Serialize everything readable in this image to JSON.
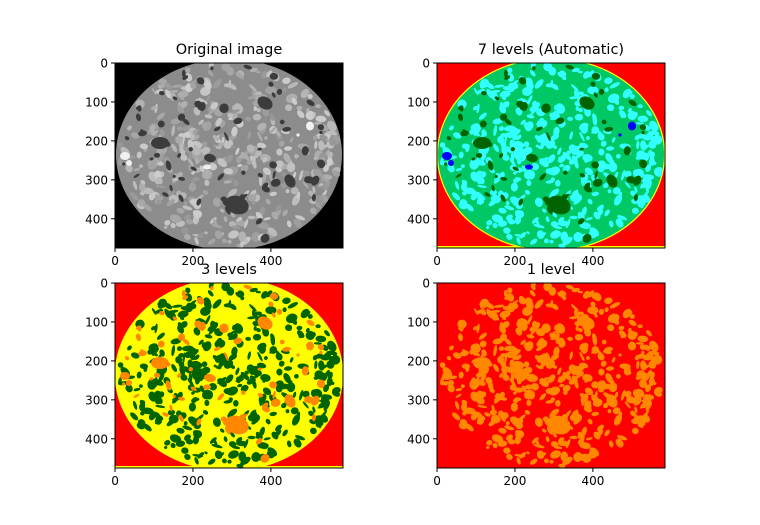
{
  "chart_data": [
    {
      "type": "image",
      "title": "Original image",
      "colors": {
        "background": "#000000",
        "matrix": "#8c8c8c",
        "aggregate": "#b4b4b4",
        "void": "#3c3c3c",
        "bright": "#f0f0f0"
      },
      "x_ticks": [
        0,
        200,
        400
      ],
      "y_ticks": [
        0,
        100,
        200,
        300,
        400
      ],
      "xlim": [
        0,
        585
      ],
      "ylim": [
        0,
        475
      ],
      "y_inverted": true
    },
    {
      "type": "image",
      "title": "7 levels (Automatic)",
      "colors": {
        "background": "#ff0000",
        "matrix": "#00c864",
        "aggregate": "#33ffff",
        "void": "#006400",
        "bright": "#0000ff",
        "edge": "#ffff00"
      },
      "x_ticks": [
        0,
        200,
        400
      ],
      "y_ticks": [
        0,
        100,
        200,
        300,
        400
      ],
      "xlim": [
        0,
        585
      ],
      "ylim": [
        0,
        475
      ],
      "y_inverted": true
    },
    {
      "type": "image",
      "title": "3 levels",
      "colors": {
        "background": "#ff0000",
        "matrix": "#ffff00",
        "aggregate": "#006400",
        "void": "#ff8800",
        "bright": "#ff8800",
        "edge": "#ffff00"
      },
      "x_ticks": [
        0,
        200,
        400
      ],
      "y_ticks": [
        0,
        100,
        200,
        300,
        400
      ],
      "xlim": [
        0,
        585
      ],
      "ylim": [
        0,
        475
      ],
      "y_inverted": true
    },
    {
      "type": "image",
      "title": "1 level",
      "colors": {
        "background": "#ff0000",
        "matrix": "#ff0000",
        "aggregate": "#ff8800",
        "void": "#ff8800",
        "bright": "#ff8800",
        "edge": "#ff0000"
      },
      "x_ticks": [
        0,
        200,
        400
      ],
      "y_ticks": [
        0,
        100,
        200,
        300,
        400
      ],
      "xlim": [
        0,
        585
      ],
      "ylim": [
        0,
        475
      ],
      "y_inverted": true
    }
  ]
}
